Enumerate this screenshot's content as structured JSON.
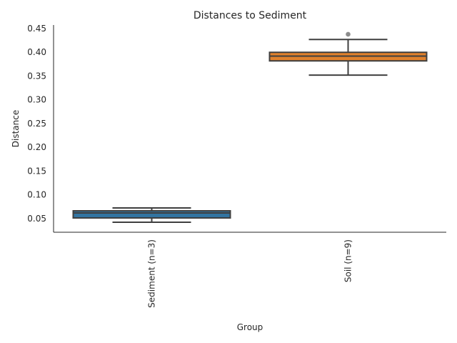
{
  "chart_data": {
    "type": "box",
    "title": "Distances to Sediment",
    "xlabel": "Group",
    "ylabel": "Distance",
    "ylim": [
      0.0214,
      0.4575
    ],
    "yticks": [
      "0.05",
      "0.10",
      "0.15",
      "0.20",
      "0.25",
      "0.30",
      "0.35",
      "0.40",
      "0.45"
    ],
    "categories": [
      "Sediment (n=3)",
      "Soil (n=9)"
    ],
    "colors": [
      "#3274a1",
      "#e1812c"
    ],
    "boxes": [
      {
        "whislo": 0.0425,
        "q1": 0.0515,
        "median": 0.062,
        "q3": 0.0665,
        "whishi": 0.0726,
        "fliers": []
      },
      {
        "whislo": 0.352,
        "q1": 0.382,
        "median": 0.392,
        "q3": 0.4,
        "whishi": 0.427,
        "fliers": [
          0.438
        ]
      }
    ],
    "grid": false
  }
}
